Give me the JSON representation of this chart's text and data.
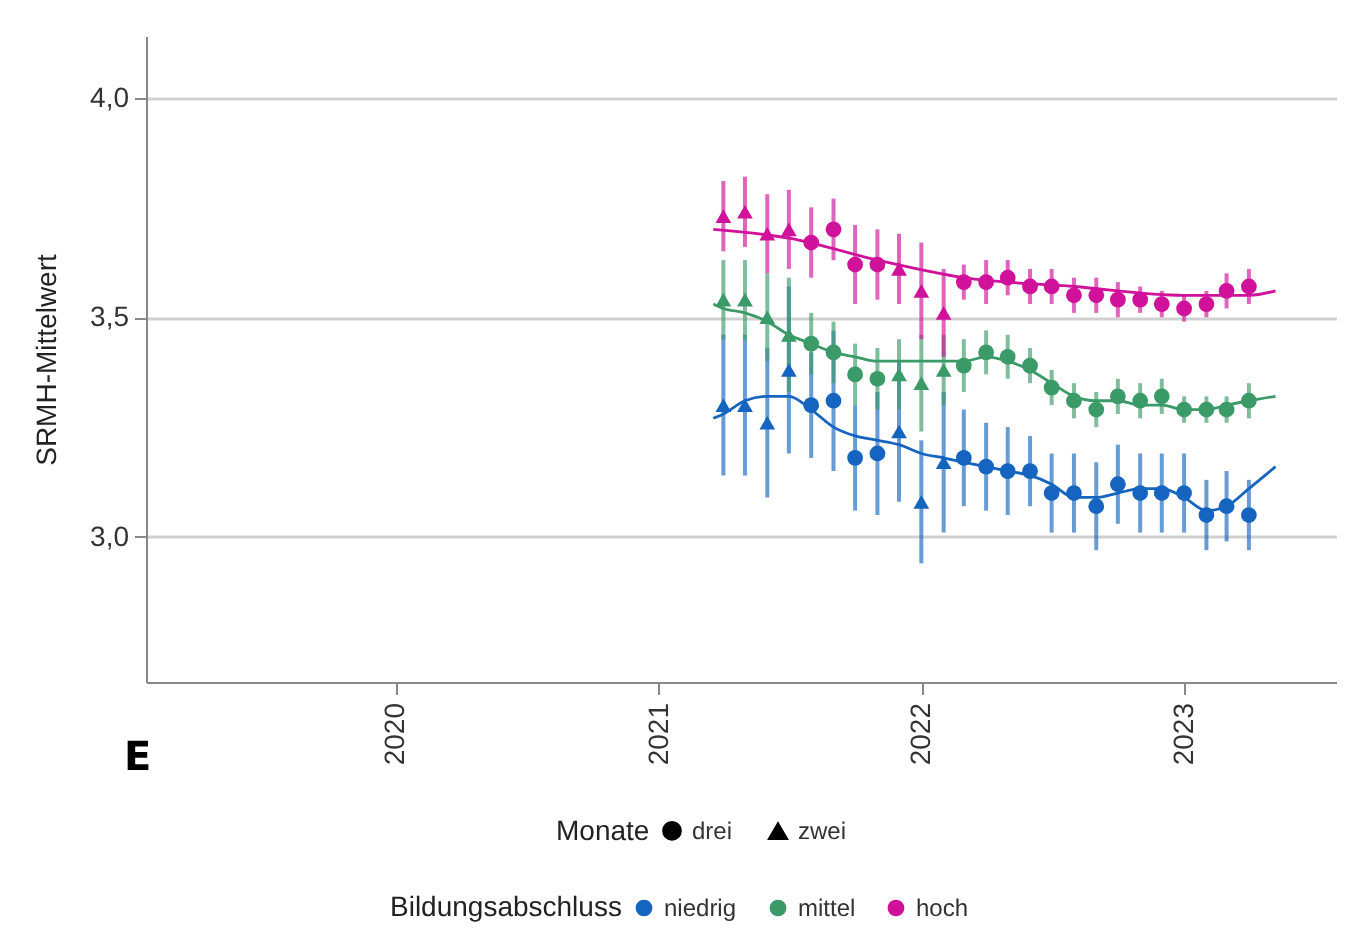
{
  "chart_data": {
    "type": "scatter",
    "ylabel": "SRMH-Mittelwert",
    "legend_title": "Bildungsabschluss",
    "annotations": [
      "E",
      "Monate",
      "drei",
      "zwei"
    ],
    "xlim": [
      "2019-01-20",
      "2023-07-31"
    ],
    "xticks": [
      "2020",
      "2021",
      "2022",
      "2023"
    ],
    "ylim": [
      2.67,
      4.14
    ],
    "yticks": [
      {
        "value": 3,
        "label": "3,0"
      },
      {
        "value": 3.5,
        "label": "3,5"
      },
      {
        "value": 4,
        "label": "4,0"
      }
    ],
    "grid": "y",
    "legend": "bottom",
    "series": [
      {
        "color": "#1565c0",
        "marker": "triangle",
        "x": [
          "2021-04",
          "2021-05",
          "2021-06",
          "2021-07",
          "2021-12",
          "2022-01",
          "2022-02"
        ],
        "values": [
          3.3,
          3.3,
          3.26,
          3.38,
          3.24,
          3.08,
          3.17
        ],
        "errors": [
          0.16,
          0.16,
          0.17,
          0.19,
          0.16,
          0.14,
          0.16
        ]
      },
      {
        "name": "niedrig",
        "color": "#1565c0",
        "marker": "circle",
        "x": [
          "2021-08",
          "2021-09",
          "2021-10",
          "2021-11",
          "2022-03",
          "2022-04",
          "2022-05",
          "2022-06",
          "2022-07",
          "2022-08",
          "2022-09",
          "2022-10",
          "2022-11",
          "2022-12",
          "2023-01",
          "2023-02",
          "2023-03",
          "2023-04"
        ],
        "values": [
          3.3,
          3.31,
          3.18,
          3.19,
          3.18,
          3.16,
          3.15,
          3.15,
          3.1,
          3.1,
          3.07,
          3.12,
          3.1,
          3.1,
          3.1,
          3.05,
          3.07,
          3.05
        ],
        "errors": [
          0.12,
          0.16,
          0.12,
          0.14,
          0.11,
          0.1,
          0.1,
          0.08,
          0.09,
          0.09,
          0.1,
          0.09,
          0.09,
          0.09,
          0.09,
          0.08,
          0.08,
          0.08
        ]
      },
      {
        "color": "#3a9a68",
        "marker": "triangle",
        "x": [
          "2021-04",
          "2021-05",
          "2021-06",
          "2021-07",
          "2021-12",
          "2022-01",
          "2022-02"
        ],
        "values": [
          3.54,
          3.54,
          3.5,
          3.46,
          3.37,
          3.35,
          3.38
        ],
        "errors": [
          0.09,
          0.09,
          0.1,
          0.13,
          0.08,
          0.11,
          0.08
        ]
      },
      {
        "name": "mittel",
        "color": "#3a9a68",
        "marker": "circle",
        "x": [
          "2021-08",
          "2021-09",
          "2021-10",
          "2021-11",
          "2022-03",
          "2022-04",
          "2022-05",
          "2022-06",
          "2022-07",
          "2022-08",
          "2022-09",
          "2022-10",
          "2022-11",
          "2022-12",
          "2023-01",
          "2023-02",
          "2023-03",
          "2023-04"
        ],
        "values": [
          3.44,
          3.42,
          3.37,
          3.36,
          3.39,
          3.42,
          3.41,
          3.39,
          3.34,
          3.31,
          3.29,
          3.32,
          3.31,
          3.32,
          3.29,
          3.29,
          3.29,
          3.31
        ],
        "errors": [
          0.07,
          0.07,
          0.07,
          0.07,
          0.06,
          0.05,
          0.05,
          0.04,
          0.04,
          0.04,
          0.04,
          0.04,
          0.04,
          0.04,
          0.03,
          0.03,
          0.03,
          0.04
        ]
      },
      {
        "color": "#d0119a",
        "marker": "triangle",
        "x": [
          "2021-04",
          "2021-05",
          "2021-06",
          "2021-07",
          "2021-12",
          "2022-01",
          "2022-02"
        ],
        "values": [
          3.73,
          3.74,
          3.69,
          3.7,
          3.61,
          3.56,
          3.51
        ],
        "errors": [
          0.08,
          0.08,
          0.09,
          0.09,
          0.08,
          0.11,
          0.1
        ]
      },
      {
        "name": "hoch",
        "color": "#d0119a",
        "marker": "circle",
        "x": [
          "2021-08",
          "2021-09",
          "2021-10",
          "2021-11",
          "2022-03",
          "2022-04",
          "2022-05",
          "2022-06",
          "2022-07",
          "2022-08",
          "2022-09",
          "2022-10",
          "2022-11",
          "2022-12",
          "2023-01",
          "2023-02",
          "2023-03",
          "2023-04"
        ],
        "values": [
          3.67,
          3.7,
          3.62,
          3.62,
          3.58,
          3.58,
          3.59,
          3.57,
          3.57,
          3.55,
          3.55,
          3.54,
          3.54,
          3.53,
          3.52,
          3.53,
          3.56,
          3.57
        ],
        "errors": [
          0.08,
          0.07,
          0.09,
          0.08,
          0.04,
          0.05,
          0.04,
          0.04,
          0.04,
          0.04,
          0.04,
          0.04,
          0.03,
          0.03,
          0.03,
          0.03,
          0.04,
          0.04
        ]
      },
      {
        "color": "#1565c0",
        "type": "line",
        "x": [
          "2021-03-18",
          "2021-04",
          "2021-05",
          "2021-06",
          "2021-07",
          "2021-08",
          "2021-09",
          "2021-10",
          "2021-11",
          "2021-12",
          "2022-01",
          "2022-02",
          "2022-03",
          "2022-04",
          "2022-05",
          "2022-06",
          "2022-07",
          "2022-08",
          "2022-09",
          "2022-10",
          "2022-11",
          "2022-12",
          "2023-01",
          "2023-02",
          "2023-03",
          "2023-04",
          "2023-05-08"
        ],
        "values": [
          3.27,
          3.28,
          3.31,
          3.32,
          3.32,
          3.29,
          3.25,
          3.23,
          3.22,
          3.21,
          3.19,
          3.18,
          3.17,
          3.16,
          3.15,
          3.14,
          3.12,
          3.09,
          3.09,
          3.1,
          3.11,
          3.11,
          3.09,
          3.06,
          3.07,
          3.11,
          3.16
        ]
      },
      {
        "color": "#3a9a68",
        "type": "line",
        "x": [
          "2021-03-18",
          "2021-04",
          "2021-05",
          "2021-06",
          "2021-07",
          "2021-08",
          "2021-09",
          "2021-10",
          "2021-11",
          "2021-12",
          "2022-01",
          "2022-02",
          "2022-03",
          "2022-04",
          "2022-05",
          "2022-06",
          "2022-07",
          "2022-08",
          "2022-09",
          "2022-10",
          "2022-11",
          "2022-12",
          "2023-01",
          "2023-02",
          "2023-03",
          "2023-04",
          "2023-05-08"
        ],
        "values": [
          3.53,
          3.52,
          3.51,
          3.49,
          3.46,
          3.44,
          3.42,
          3.41,
          3.4,
          3.4,
          3.4,
          3.4,
          3.4,
          3.41,
          3.4,
          3.38,
          3.35,
          3.32,
          3.31,
          3.31,
          3.3,
          3.3,
          3.29,
          3.29,
          3.3,
          3.31,
          3.32
        ]
      },
      {
        "color": "#d0119a",
        "type": "line",
        "x": [
          "2021-03-18",
          "2021-07",
          "2021-11",
          "2022-03",
          "2022-08",
          "2023-01",
          "2023-04",
          "2023-05-08"
        ],
        "values": [
          3.7,
          3.68,
          3.63,
          3.59,
          3.57,
          3.55,
          3.55,
          3.56
        ]
      }
    ]
  }
}
